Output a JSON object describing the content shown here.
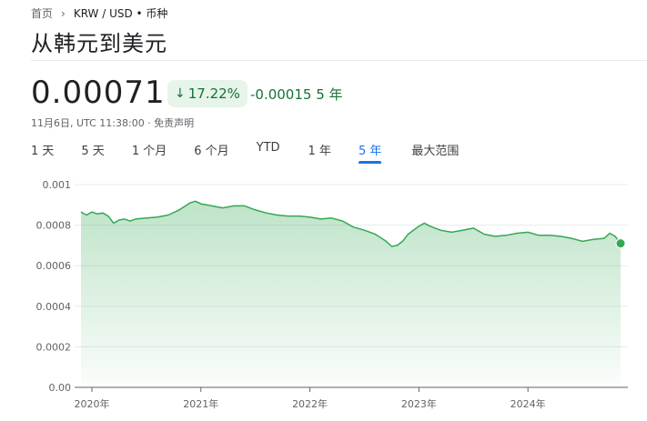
{
  "breadcrumb": {
    "home": "首页",
    "current": "KRW / USD • 币种"
  },
  "title": "从韩元到美元",
  "quote": {
    "price": "0.00071",
    "change_percent": "17.22%",
    "change_abs": "-0.00015",
    "change_period": "5 年",
    "timestamp": "11月6日, UTC 11:38:00 · 免责声明"
  },
  "tabs": [
    {
      "label": "1 天"
    },
    {
      "label": "5 天"
    },
    {
      "label": "1 个月"
    },
    {
      "label": "6 个月"
    },
    {
      "label": "YTD"
    },
    {
      "label": "1 年"
    },
    {
      "label": "5 年",
      "active": true
    },
    {
      "label": "最大范围"
    }
  ],
  "colors": {
    "line": "#34a853",
    "positive_text": "#137333",
    "badge_bg": "#e6f4ea",
    "accent": "#1a73e8"
  },
  "chart_data": {
    "type": "area",
    "ylim": [
      0,
      0.001
    ],
    "yticks": [
      "0.001",
      "0.0008",
      "0.0006",
      "0.0004",
      "0.0002",
      "0.00"
    ],
    "ytick_values": [
      0.001,
      0.0008,
      0.0006,
      0.0004,
      0.0002,
      0
    ],
    "xlim": [
      2019.9,
      2024.85
    ],
    "xticks": [
      "2020年",
      "2021年",
      "2022年",
      "2023年",
      "2024年"
    ],
    "xtick_values": [
      2020,
      2021,
      2022,
      2023,
      2024
    ],
    "grid": true,
    "series": [
      {
        "x": [
          2019.9,
          2019.95,
          2020.0,
          2020.05,
          2020.1,
          2020.15,
          2020.2,
          2020.25,
          2020.3,
          2020.35,
          2020.4,
          2020.5,
          2020.6,
          2020.7,
          2020.8,
          2020.9,
          2020.95,
          2021.0,
          2021.05,
          2021.1,
          2021.2,
          2021.3,
          2021.4,
          2021.5,
          2021.6,
          2021.7,
          2021.8,
          2021.9,
          2022.0,
          2022.1,
          2022.2,
          2022.3,
          2022.4,
          2022.5,
          2022.6,
          2022.7,
          2022.75,
          2022.8,
          2022.85,
          2022.9,
          2023.0,
          2023.05,
          2023.1,
          2023.2,
          2023.3,
          2023.4,
          2023.5,
          2023.6,
          2023.7,
          2023.8,
          2023.9,
          2024.0,
          2024.1,
          2024.2,
          2024.3,
          2024.4,
          2024.5,
          2024.6,
          2024.7,
          2024.75,
          2024.8,
          2024.85
        ],
        "y": [
          0.000865,
          0.00085,
          0.000865,
          0.000855,
          0.00086,
          0.000845,
          0.00081,
          0.000825,
          0.00083,
          0.00082,
          0.00083,
          0.000835,
          0.00084,
          0.00085,
          0.000875,
          0.00091,
          0.000918,
          0.000905,
          0.0009,
          0.000895,
          0.000885,
          0.000895,
          0.000895,
          0.000875,
          0.00086,
          0.00085,
          0.000845,
          0.000845,
          0.00084,
          0.00083,
          0.000835,
          0.00082,
          0.00079,
          0.000775,
          0.000755,
          0.00072,
          0.000695,
          0.0007,
          0.00072,
          0.000755,
          0.000795,
          0.00081,
          0.000795,
          0.000775,
          0.000765,
          0.000775,
          0.000785,
          0.000755,
          0.000745,
          0.00075,
          0.00076,
          0.000765,
          0.00075,
          0.00075,
          0.000745,
          0.000735,
          0.00072,
          0.00073,
          0.000735,
          0.00076,
          0.000745,
          0.00071
        ]
      }
    ]
  }
}
